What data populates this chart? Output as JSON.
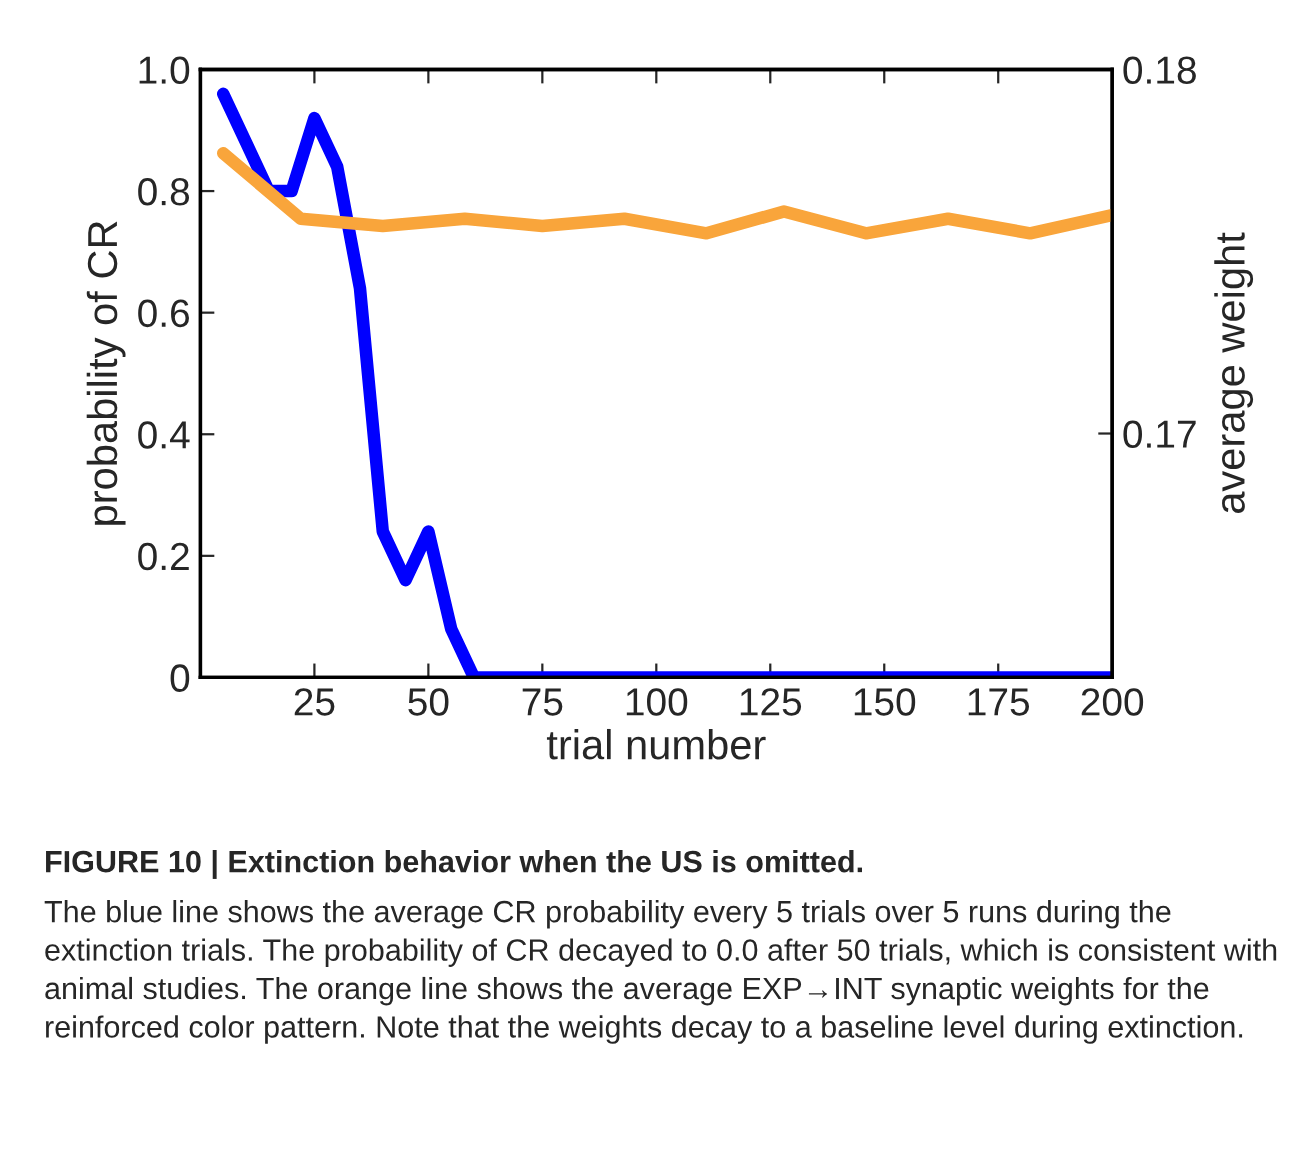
{
  "chart_data": {
    "type": "line",
    "xlabel": "trial number",
    "ylabel": "probability of CR",
    "y2label": "average weight",
    "xlim": [
      0,
      200
    ],
    "xticks": [
      25,
      50,
      75,
      100,
      125,
      150,
      175,
      200
    ],
    "ylim": [
      0,
      1.0
    ],
    "yticks": [
      0,
      0.2,
      0.4,
      0.6,
      0.8,
      {
        "value": 1.0,
        "label": "1.0"
      }
    ],
    "y2lim": [
      0.1633,
      0.18
    ],
    "y2ticks": [
      0.17,
      0.18
    ],
    "grid": false,
    "marker": "none",
    "line_style": "solid",
    "series": [
      {
        "color": "#0000ff",
        "x": [
          5,
          10,
          15,
          20,
          25,
          30,
          35,
          40,
          45,
          50,
          55,
          60,
          200
        ],
        "values": [
          0.96,
          0.88,
          0.8,
          0.8,
          0.92,
          0.84,
          0.64,
          0.24,
          0.16,
          0.24,
          0.08,
          0,
          0
        ]
      },
      {
        "color": "#f9a53b",
        "axis": "y2",
        "x": [
          5,
          22,
          40,
          58,
          75,
          93,
          111,
          128,
          146,
          164,
          182,
          200
        ],
        "values": [
          0.1777,
          0.1759,
          0.1757,
          0.1759,
          0.1757,
          0.1759,
          0.1755,
          0.1761,
          0.1755,
          0.1759,
          0.1755,
          0.176
        ]
      }
    ],
    "annotations": [
      "FIGURE 10 | Extinction behavior when the US is omitted.",
      "The blue line shows the average CR probability every 5 trials over 5 runs during the extinction trials. The probability of CR decayed to 0.0 after 50 trials, which is consistent with animal studies. The orange line shows the average EXP→INT synaptic weights for the reinforced color pattern. Note that the weights decay to a baseline level during extinction."
    ]
  }
}
